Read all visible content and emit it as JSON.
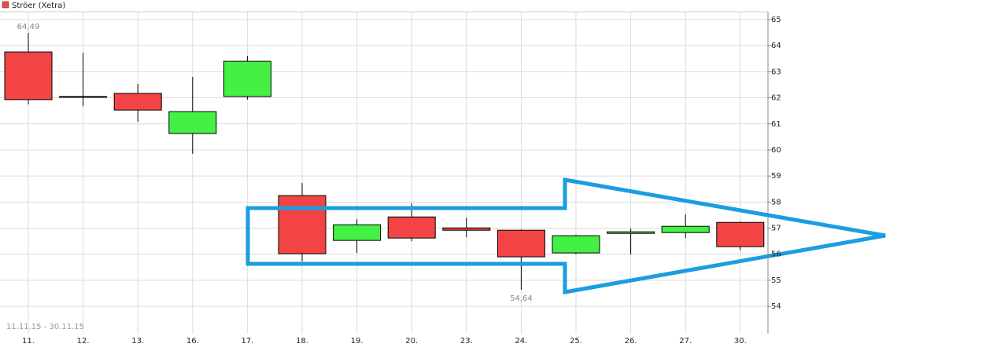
{
  "chart_data": {
    "type": "candlestick",
    "legend": "Ströer (Xetra)",
    "date_range": "11.11.15 - 30.11.15",
    "categories": [
      "11.",
      "12.",
      "13.",
      "16.",
      "17.",
      "18.",
      "19.",
      "20.",
      "23.",
      "24.",
      "25.",
      "26.",
      "27.",
      "30."
    ],
    "open": [
      63.76,
      62.05,
      62.17,
      60.63,
      62.05,
      58.25,
      56.53,
      57.43,
      57.01,
      56.92,
      56.05,
      56.8,
      56.83,
      57.22
    ],
    "high": [
      64.49,
      63.73,
      62.53,
      62.8,
      63.61,
      58.73,
      57.34,
      57.95,
      57.4,
      56.95,
      56.75,
      56.98,
      57.53,
      57.25
    ],
    "low": [
      61.75,
      61.68,
      61.08,
      59.85,
      61.93,
      55.72,
      56.05,
      56.5,
      56.65,
      54.64,
      56.0,
      55.99,
      56.62,
      56.15
    ],
    "close": [
      61.93,
      62.05,
      61.53,
      61.47,
      63.4,
      56.02,
      57.13,
      56.62,
      56.92,
      55.9,
      56.71,
      56.86,
      57.07,
      56.29
    ],
    "high_labels": [
      "64,49",
      null,
      null,
      null,
      null,
      null,
      null,
      null,
      null,
      null,
      null,
      null,
      null,
      null
    ],
    "low_labels": [
      null,
      null,
      null,
      null,
      null,
      null,
      null,
      null,
      null,
      "54,64",
      null,
      null,
      null,
      null
    ],
    "up_color": "#44f044",
    "down_color": "#f24444",
    "ylim": [
      52.95,
      65.3
    ],
    "yticks": [
      54,
      55,
      56,
      57,
      58,
      59,
      60,
      61,
      62,
      63,
      64,
      65
    ],
    "grid": true
  }
}
